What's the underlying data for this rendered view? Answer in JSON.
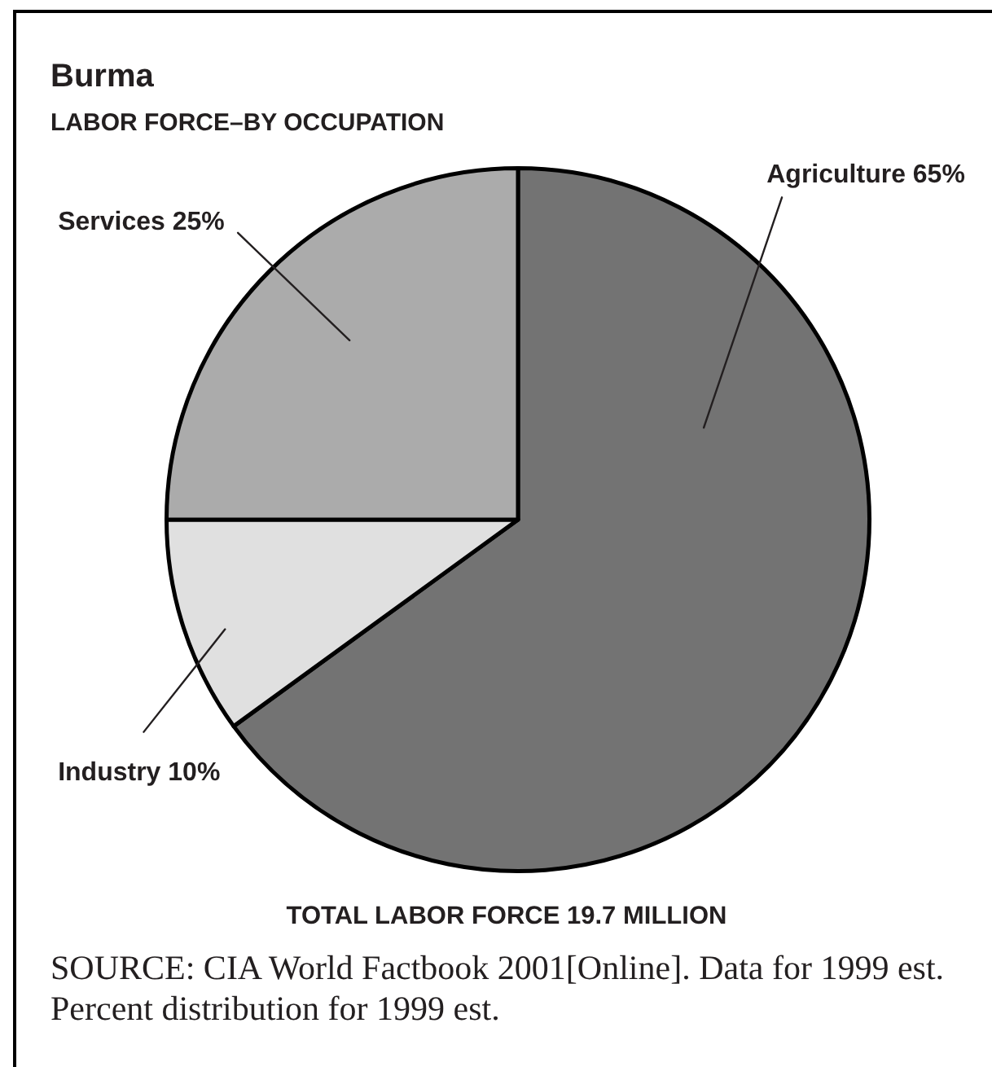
{
  "chart_data": {
    "type": "pie",
    "title": "Burma",
    "subtitle": "LABOR FORCE–BY OCCUPATION",
    "categories": [
      "Agriculture",
      "Industry",
      "Services"
    ],
    "values": [
      65,
      10,
      25
    ],
    "value_labels": [
      "65%",
      "10%",
      "25%"
    ],
    "colors": [
      "#737373",
      "#e0e0e0",
      "#ababab"
    ],
    "legend": false,
    "annotations": [
      "TOTAL LABOR FORCE 19.7 MILLION",
      "SOURCE: CIA World Factbook 2001[Online]. Data for 1999 est. Percent distribution for 1999 est."
    ]
  }
}
